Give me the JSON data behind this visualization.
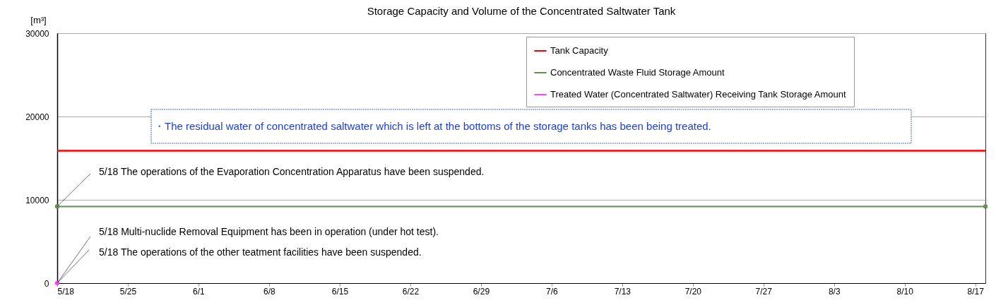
{
  "chart_data": {
    "type": "line",
    "title": "Storage Capacity and Volume of the Concentrated Saltwater Tank",
    "ylabel": "[m³]",
    "xlim": [
      "--05-18",
      "--08-18"
    ],
    "xticks": [
      {
        "value": "--05-18",
        "label": "5/18"
      },
      {
        "value": "--05-25",
        "label": "5/25"
      },
      {
        "value": "--06-01",
        "label": "6/1"
      },
      {
        "value": "--06-08",
        "label": "6/8"
      },
      {
        "value": "--06-15",
        "label": "6/15"
      },
      {
        "value": "--06-22",
        "label": "6/22"
      },
      {
        "value": "--06-29",
        "label": "6/29"
      },
      {
        "value": "--07-06",
        "label": "7/6"
      },
      {
        "value": "--07-13",
        "label": "7/13"
      },
      {
        "value": "--07-20",
        "label": "7/20"
      },
      {
        "value": "--07-27",
        "label": "7/27"
      },
      {
        "value": "--08-03",
        "label": "8/3"
      },
      {
        "value": "--08-10",
        "label": "8/10"
      },
      {
        "value": "--08-17",
        "label": "8/17"
      }
    ],
    "ylim": [
      0,
      30000
    ],
    "yticks": [
      0,
      10000,
      20000,
      30000
    ],
    "grid": "y",
    "legend": "top right",
    "series": [
      {
        "name": "Tank Capacity",
        "color": "#ff0000",
        "x": [
          "--05-18",
          "--08-18"
        ],
        "values": [
          15900,
          15900
        ]
      },
      {
        "name": "Concentrated Waste Fluid Storage Amount",
        "color": "#6a8a5a",
        "x": [
          "--05-18",
          "--08-18"
        ],
        "values": [
          9200,
          9200
        ],
        "marker": "circle"
      },
      {
        "name": "Treated Water (Concentrated Saltwater) Receiving Tank Storage Amount",
        "color": "#ff44ff",
        "x": [
          "--05-18"
        ],
        "values": [
          0
        ],
        "marker": "circle"
      }
    ],
    "annotations": [
      "・The residual water of concentrated saltwater which is left at the bottoms of the storage tanks has been being treated.",
      {
        "text": "5/18  The operations of the Evaporation Concentration Apparatus have been suspended.",
        "x": "--05-18",
        "y": 9200
      },
      {
        "text": "5/18  Multi-nuclide Removal Equipment has been in operation (under hot test).",
        "x": "--05-18",
        "y": 0
      },
      {
        "text": "5/18  The operations of the other teatment facilities have been suspended.",
        "x": "--05-18",
        "y": 0
      }
    ]
  }
}
